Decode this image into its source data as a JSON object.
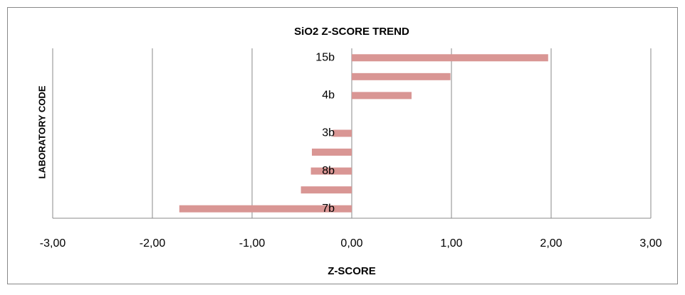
{
  "chart_data": {
    "type": "bar",
    "orientation": "horizontal",
    "title": "SiO2  Z-SCORE TREND",
    "x_label": "Z-SCORE",
    "y_label": "LABORATORY CODE",
    "categories": [
      "15b",
      null,
      "4b",
      null,
      "3b",
      null,
      "8b",
      null,
      "7b"
    ],
    "values": [
      1.97,
      0.99,
      0.6,
      0,
      -0.19,
      -0.4,
      -0.41,
      -0.51,
      -1.73
    ],
    "color": "#d99694",
    "xlim": [
      -3,
      3
    ],
    "xticks": [
      {
        "value": -3,
        "label": "-3,00"
      },
      {
        "value": -2,
        "label": "-2,00"
      },
      {
        "value": -1,
        "label": "-1,00"
      },
      {
        "value": 0,
        "label": "0,00"
      },
      {
        "value": 1,
        "label": "1,00"
      },
      {
        "value": 2,
        "label": "2,00"
      },
      {
        "value": 3,
        "label": "3,00"
      }
    ],
    "grid": true
  }
}
